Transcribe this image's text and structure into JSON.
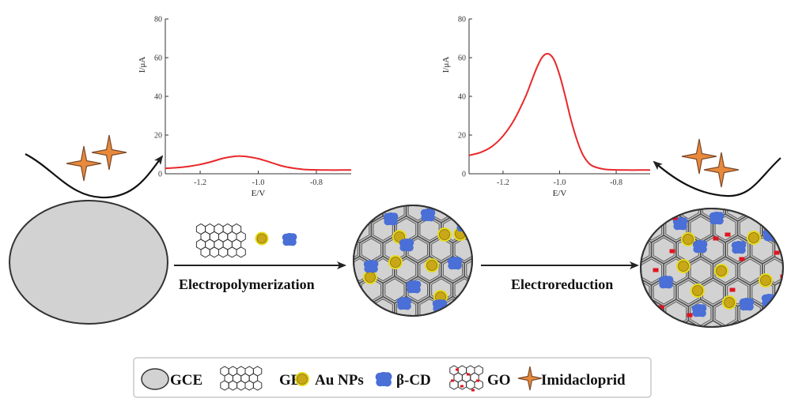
{
  "chart_data": [
    {
      "type": "line",
      "xlabel": "E/V",
      "ylabel": "I/μA",
      "xlim": [
        -1.32,
        -0.68
      ],
      "ylim": [
        0,
        80
      ],
      "xticks": [
        "-1.2",
        "-1.0",
        "-0.8"
      ],
      "yticks": [
        "0",
        "20",
        "40",
        "60",
        "80"
      ],
      "series": [
        {
          "color": "#e8282b",
          "x": [
            -1.32,
            -1.28,
            -1.24,
            -1.2,
            -1.16,
            -1.12,
            -1.08,
            -1.06,
            -1.04,
            -1.0,
            -0.96,
            -0.92,
            -0.88,
            -0.84,
            -0.8,
            -0.76,
            -0.72,
            -0.68
          ],
          "y": [
            2.8,
            3.2,
            3.8,
            4.8,
            6.3,
            8.0,
            9.0,
            9.1,
            8.9,
            7.8,
            6.0,
            4.1,
            2.9,
            2.2,
            2.0,
            1.9,
            1.9,
            1.9
          ]
        }
      ]
    },
    {
      "type": "line",
      "xlabel": "E/V",
      "ylabel": "I/μA",
      "xlim": [
        -1.32,
        -0.68
      ],
      "ylim": [
        0,
        80
      ],
      "xticks": [
        "-1.2",
        "-1.0",
        "-0.8"
      ],
      "yticks": [
        "0",
        "20",
        "40",
        "60",
        "80"
      ],
      "series": [
        {
          "color": "#e8282b",
          "x": [
            -1.32,
            -1.28,
            -1.24,
            -1.2,
            -1.16,
            -1.12,
            -1.1,
            -1.08,
            -1.06,
            -1.04,
            -1.02,
            -1.0,
            -0.98,
            -0.96,
            -0.94,
            -0.92,
            -0.9,
            -0.88,
            -0.84,
            -0.8,
            -0.76,
            -0.72,
            -0.68
          ],
          "y": [
            9.5,
            11.0,
            14.0,
            19.5,
            28.0,
            40.0,
            47.5,
            55.0,
            60.5,
            62.0,
            59.0,
            51.0,
            40.0,
            28.0,
            18.0,
            10.5,
            6.0,
            3.8,
            2.3,
            2.0,
            1.9,
            1.9,
            1.9
          ]
        }
      ]
    }
  ],
  "arrows": {
    "step1_label": "Electropolymerization",
    "step2_label": "Electroreduction"
  },
  "legend": {
    "items": [
      {
        "icon": "gce-ellipse-icon",
        "label": "GCE"
      },
      {
        "icon": "graphene-hex-icon",
        "label": "GE"
      },
      {
        "icon": "au-np-icon",
        "label": "Au NPs"
      },
      {
        "icon": "beta-cd-icon",
        "label": "β-CD"
      },
      {
        "icon": "go-hex-icon",
        "label": "GO"
      },
      {
        "icon": "imidacloprid-star-icon",
        "label": "Imidacloprid"
      }
    ]
  },
  "colors": {
    "electrode": "#d2d2d2",
    "au": "#c9a818",
    "au_ring": "#e6dc1e",
    "cd": "#4a6fd6",
    "go_dot": "#e01520",
    "star": "#e8893c",
    "curve": "#e8282b"
  }
}
